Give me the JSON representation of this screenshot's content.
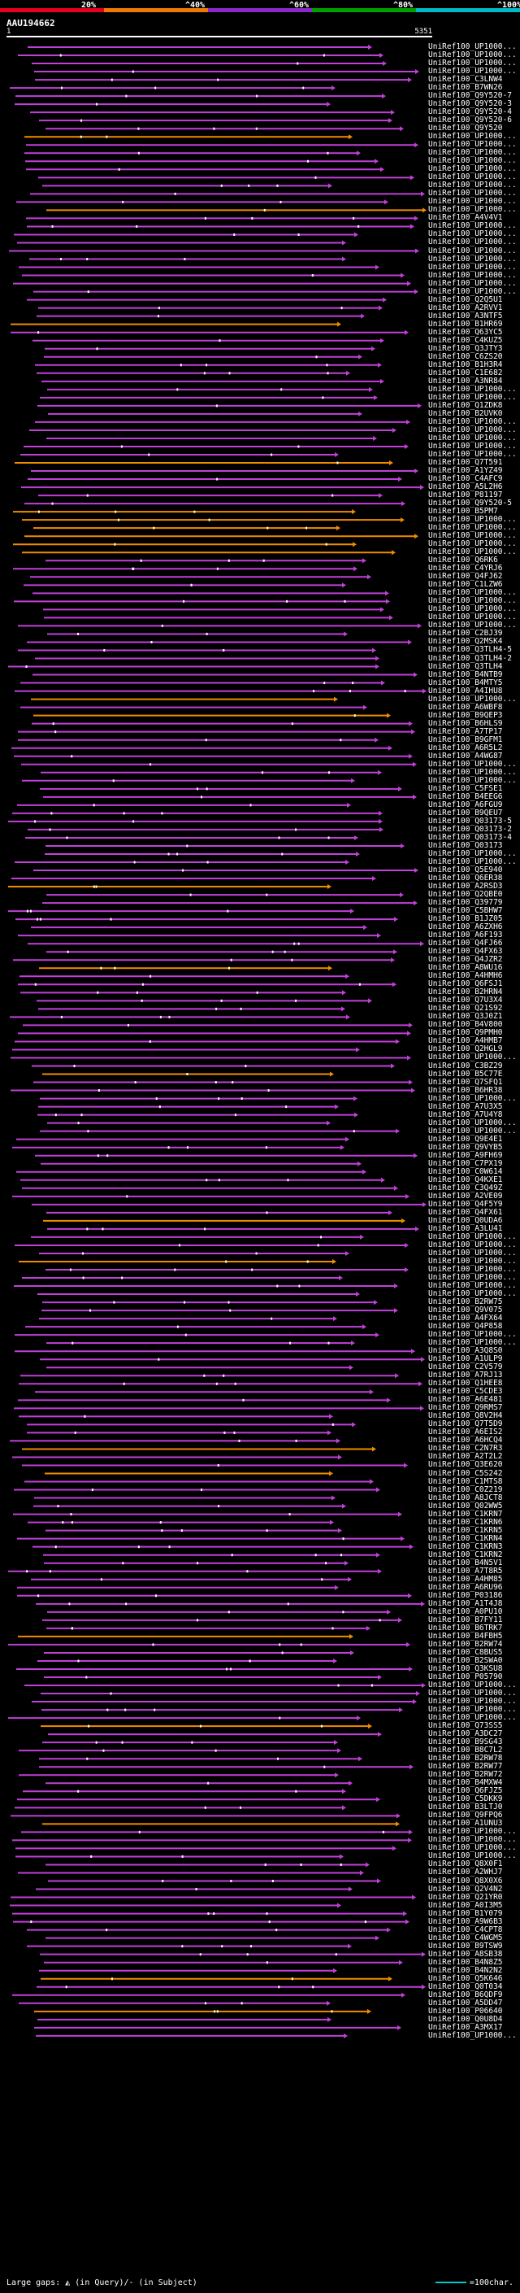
{
  "scale": {
    "ticks": [
      "20%",
      "^40%",
      "^60%",
      "^80%",
      "^100%"
    ],
    "colors": [
      "#e8001e",
      "#f07800",
      "#8a28c8",
      "#00a000",
      "#00b8c8"
    ]
  },
  "title": "AAU194662",
  "ruler": {
    "start": "1",
    "end": "5351"
  },
  "colors": {
    "magenta": "#c040d8",
    "orange": "#f08c00",
    "gap": "#ffffff"
  },
  "hits": [
    "UniRef100_UP1000...",
    "UniRef100_UP1000...",
    "UniRef100_UP1000...",
    "UniRef100_UP1000...",
    "UniRef100_C3LNW4",
    "UniRef100_B7WN26",
    "UniRef100_Q9Y520-7",
    "UniRef100_Q9Y520-3",
    "UniRef100_Q9Y520-4",
    "UniRef100_Q9Y520-6",
    "UniRef100_Q9Y520",
    "UniRef100_UP1000...",
    "UniRef100_UP1000...",
    "UniRef100_UP1000...",
    "UniRef100_UP1000...",
    "UniRef100_UP1000...",
    "UniRef100_UP1000...",
    "UniRef100_UP1000...",
    "UniRef100_UP1000...",
    "UniRef100_UP1000...",
    "UniRef100_UP1000...",
    "UniRef100_A4V4V1",
    "UniRef100_UP1000...",
    "UniRef100_UP1000...",
    "UniRef100_UP1000...",
    "UniRef100_UP1000...",
    "UniRef100_UP1000...",
    "UniRef100_UP1000...",
    "UniRef100_UP1000...",
    "UniRef100_UP1000...",
    "UniRef100_UP1000...",
    "UniRef100_Q2Q5U1",
    "UniRef100_A2RVV1",
    "UniRef100_A3NTF5",
    "UniRef100_B1HR69",
    "UniRef100_Q63YC5",
    "UniRef100_C4KUZ5",
    "UniRef100_Q3JTY3",
    "UniRef100_C6ZS20",
    "UniRef100_B1H3R4",
    "UniRef100_C1E682",
    "UniRef100_A3NR84",
    "UniRef100_UP1000...",
    "UniRef100_UP1000...",
    "UniRef100_Q1ZDK8",
    "UniRef100_B2UVK0",
    "UniRef100_UP1000...",
    "UniRef100_UP1000...",
    "UniRef100_UP1000...",
    "UniRef100_UP1000...",
    "UniRef100_UP1000...",
    "UniRef100_Q7T591",
    "UniRef100_A1YZ49",
    "UniRef100_C4AFC9",
    "UniRef100_A5L2H6",
    "UniRef100_P81197",
    "UniRef100_Q9Y520-5",
    "UniRef100_B5PM7",
    "UniRef100_UP1000...",
    "UniRef100_UP1000...",
    "UniRef100_UP1000...",
    "UniRef100_UP1000...",
    "UniRef100_UP1000...",
    "UniRef100_Q6RK6",
    "UniRef100_C4YRJ6",
    "UniRef100_Q4FJ62",
    "UniRef100_C1LZW6",
    "UniRef100_UP1000...",
    "UniRef100_UP1000...",
    "UniRef100_UP1000...",
    "UniRef100_UP1000...",
    "UniRef100_UP1000...",
    "UniRef100_C2BJ39",
    "UniRef100_Q2MSK4",
    "UniRef100_Q3TLH4-5",
    "UniRef100_Q3TLH4-2",
    "UniRef100_Q3TLH4",
    "UniRef100_B4NTB9",
    "UniRef100_B4MTY5",
    "UniRef100_A4IHU8",
    "UniRef100_UP1000...",
    "UniRef100_A6WBF8",
    "UniRef100_B9QEP3",
    "UniRef100_B6HLS9",
    "UniRef100_A7TP17",
    "UniRef100_B9GFM1",
    "UniRef100_A6R5L2",
    "UniRef100_A4WG87",
    "UniRef100_UP1000...",
    "UniRef100_UP1000...",
    "UniRef100_UP1000...",
    "UniRef100_C5FSE1",
    "UniRef100_B4EEG6",
    "UniRef100_A6FGU9",
    "UniRef100_B9QEU7",
    "UniRef100_Q03173-5",
    "UniRef100_Q03173-2",
    "UniRef100_Q03173-4",
    "UniRef100_Q03173",
    "UniRef100_UP1000...",
    "UniRef100_UP1000...",
    "UniRef100_Q5E940",
    "UniRef100_Q6ER38",
    "UniRef100_A2RSD3",
    "UniRef100_Q2QBE0",
    "UniRef100_Q39779",
    "UniRef100_C5BHW7",
    "UniRef100_B1JZ05",
    "UniRef100_A6ZXH6",
    "UniRef100_A6F193",
    "UniRef100_Q4FJ66",
    "UniRef100_Q4FX63",
    "UniRef100_Q4JZR2",
    "UniRef100_A8WU16",
    "UniRef100_A4HMH6",
    "UniRef100_Q6FSJ1",
    "UniRef100_B2HRN4",
    "UniRef100_Q7U3X4",
    "UniRef100_Q21S92",
    "UniRef100_Q3J0Z1",
    "UniRef100_B4V800",
    "UniRef100_Q9PMH0",
    "UniRef100_A4HMB7",
    "UniRef100_Q2HGL9",
    "UniRef100_UP1000...",
    "UniRef100_C3BZ29",
    "UniRef100_B5C77E",
    "UniRef100_Q7SFQ1",
    "UniRef100_B6HR38",
    "UniRef100_UP1000...",
    "UniRef100_A7U3X5",
    "UniRef100_A7U4Y8",
    "UniRef100_UP1000...",
    "UniRef100_UP1000...",
    "UniRef100_Q9E4E1",
    "UniRef100_Q9VYB5",
    "UniRef100_A9FH69",
    "UniRef100_C7PX19",
    "UniRef100_C0W614",
    "UniRef100_Q4KXE1",
    "UniRef100_C3Q49Z",
    "UniRef100_A2VE09",
    "UniRef100_Q4F5Y9",
    "UniRef100_Q4FX61",
    "UniRef100_Q0UDA6",
    "UniRef100_A3LU41",
    "UniRef100_UP1000...",
    "UniRef100_UP1000...",
    "UniRef100_UP1000...",
    "UniRef100_UP1000...",
    "UniRef100_UP1000...",
    "UniRef100_UP1000...",
    "UniRef100_UP1000...",
    "UniRef100_UP1000...",
    "UniRef100_B2RW75",
    "UniRef100_Q9V075",
    "UniRef100_A4FX64",
    "UniRef100_Q4P858",
    "UniRef100_UP1000...",
    "UniRef100_UP1000...",
    "UniRef100_A3Q8S0",
    "UniRef100_A1ULP9",
    "UniRef100_C2V579",
    "UniRef100_A7RJ13",
    "UniRef100_Q1HEE8",
    "UniRef100_C5CDE3",
    "UniRef100_A6E481",
    "UniRef100_Q9RMS7",
    "UniRef100_Q8V2H4",
    "UniRef100_Q7T5D9",
    "UniRef100_A6EIS2",
    "UniRef100_A6HCQ4",
    "UniRef100_C2N7R3",
    "UniRef100_A2T2L2",
    "UniRef100_Q3E620",
    "UniRef100_C5S242",
    "UniRef100_C1MTS8",
    "UniRef100_C0Z219",
    "UniRef100_A8JCT8",
    "UniRef100_Q02WW5",
    "UniRef100_C1KRN7",
    "UniRef100_C1KRN6",
    "UniRef100_C1KRN5",
    "UniRef100_C1KRN4",
    "UniRef100_C1KRN3",
    "UniRef100_C1KRN2",
    "UniRef100_B4N5V1",
    "UniRef100_A7T8R5",
    "UniRef100_A4HM85",
    "UniRef100_A6RU96",
    "UniRef100_P03186",
    "UniRef100_A1T4J8",
    "UniRef100_A0PU10",
    "UniRef100_B7FY11",
    "UniRef100_B6TRK7",
    "UniRef100_B4FBH5",
    "UniRef100_B2RW74",
    "UniRef100_C8BUS5",
    "UniRef100_B2SWA0",
    "UniRef100_Q3KSU8",
    "UniRef100_P05790",
    "UniRef100_UP1000...",
    "UniRef100_UP1000...",
    "UniRef100_UP1000...",
    "UniRef100_UP1000...",
    "UniRef100_UP1000...",
    "UniRef100_Q73SS5",
    "UniRef100_A3DC27",
    "UniRef100_B9SG43",
    "UniRef100_B8C7L2",
    "UniRef100_B2RW78",
    "UniRef100_B2RW77",
    "UniRef100_B2RW72",
    "UniRef100_B4MXW4",
    "UniRef100_Q6FJZ5",
    "UniRef100_C5DKK9",
    "UniRef100_B3LTJ0",
    "UniRef100_Q9FPQ6",
    "UniRef100_A1UNU3",
    "UniRef100_UP1000...",
    "UniRef100_UP1000...",
    "UniRef100_UP1000...",
    "UniRef100_UP1000...",
    "UniRef100_Q8X0F1",
    "UniRef100_A2WHJ7",
    "UniRef100_Q8X0X6",
    "UniRef100_Q2V4N2",
    "UniRef100_Q21YR0",
    "UniRef100_A0I3M5",
    "UniRef100_B1Y079",
    "UniRef100_A9W6B3",
    "UniRef100_C4CPT8",
    "UniRef100_C4WGM5",
    "UniRef100_B9TSW9",
    "UniRef100_A8SB38",
    "UniRef100_B4N8Z5",
    "UniRef100_B4N2N2",
    "UniRef100_Q5K646",
    "UniRef100_Q0T034",
    "UniRef100_B6QDF9",
    "UniRef100_A5DD47",
    "UniRef100_P06640",
    "UniRef100_Q0U8D4",
    "UniRef100_A3MX17",
    "UniRef100_UP1000..."
  ],
  "legend": {
    "left": "Large gaps: ◭ (in Query)/- (in Subject)",
    "right": "=100char."
  }
}
